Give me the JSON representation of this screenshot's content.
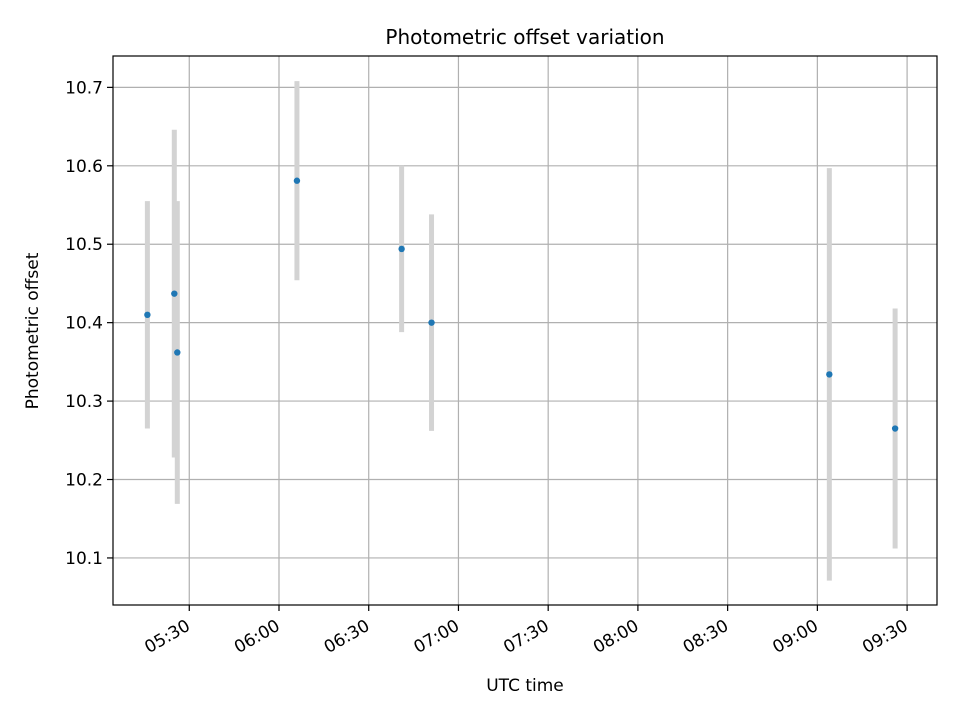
{
  "chart_data": {
    "type": "scatter",
    "title": "Photometric offset variation",
    "xlabel": "UTC time",
    "ylabel": "Photometric offset",
    "x_ticks": [
      "05:30",
      "06:00",
      "06:30",
      "07:00",
      "07:30",
      "08:00",
      "08:30",
      "09:00",
      "09:30"
    ],
    "x_tick_minutes": [
      330,
      360,
      390,
      420,
      450,
      480,
      510,
      540,
      570
    ],
    "xlim_minutes": [
      304.5,
      580
    ],
    "y_ticks": [
      "10.1",
      "10.2",
      "10.3",
      "10.4",
      "10.5",
      "10.6",
      "10.7"
    ],
    "ylim": [
      10.04,
      10.74
    ],
    "grid": true,
    "colors": {
      "point": "#1f77b4",
      "errorbar": "#d3d3d3",
      "grid": "#b0b0b0"
    },
    "series": [
      {
        "x": [
          "05:16",
          "05:25",
          "05:26",
          "06:06",
          "06:41",
          "06:51",
          "09:04",
          "09:26"
        ],
        "y": [
          10.41,
          10.437,
          10.362,
          10.581,
          10.494,
          10.4,
          10.334,
          10.265
        ],
        "yerr": [
          0.145,
          0.209,
          0.193,
          0.127,
          0.106,
          0.138,
          0.263,
          0.153
        ]
      }
    ]
  }
}
